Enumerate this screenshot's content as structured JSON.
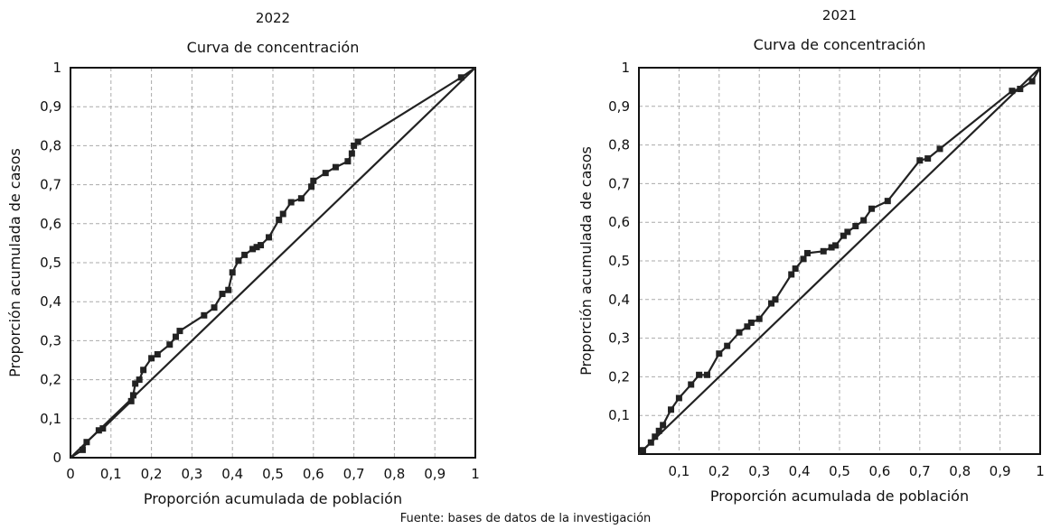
{
  "source": "Fuente: bases de datos de la investigación",
  "chart_data": [
    {
      "type": "line",
      "year": "2022",
      "title": "Curva de concentración",
      "xlabel": "Proporción acumulada de población",
      "ylabel": "Proporción acumulada de casos",
      "xlim": [
        0,
        1
      ],
      "ylim": [
        0,
        1
      ],
      "x_ticks": [
        "0",
        "0,1",
        "0,2",
        "0,3",
        "0,4",
        "0,5",
        "0,6",
        "0,7",
        "0,8",
        "0,9",
        "1"
      ],
      "y_ticks": [
        "0",
        "0,1",
        "0,2",
        "0,3",
        "0,4",
        "0,5",
        "0,6",
        "0,7",
        "0,8",
        "0,9",
        "1"
      ],
      "grid": true,
      "colors": {
        "curve": "#222222",
        "grid": "#aaaaaa"
      },
      "series": [
        {
          "role": "concentration-curve",
          "markers": true,
          "x": [
            0,
            0.03,
            0.04,
            0.07,
            0.08,
            0.15,
            0.155,
            0.16,
            0.17,
            0.18,
            0.2,
            0.215,
            0.245,
            0.26,
            0.27,
            0.33,
            0.355,
            0.375,
            0.39,
            0.4,
            0.415,
            0.43,
            0.45,
            0.46,
            0.47,
            0.49,
            0.515,
            0.525,
            0.545,
            0.57,
            0.595,
            0.6,
            0.63,
            0.655,
            0.685,
            0.695,
            0.7,
            0.71,
            0.965,
            1
          ],
          "y": [
            0,
            0.02,
            0.04,
            0.07,
            0.075,
            0.145,
            0.16,
            0.19,
            0.2,
            0.225,
            0.255,
            0.265,
            0.29,
            0.31,
            0.325,
            0.365,
            0.385,
            0.42,
            0.43,
            0.475,
            0.505,
            0.52,
            0.535,
            0.54,
            0.545,
            0.565,
            0.61,
            0.625,
            0.655,
            0.665,
            0.695,
            0.71,
            0.73,
            0.745,
            0.76,
            0.78,
            0.8,
            0.81,
            0.975,
            1
          ]
        },
        {
          "role": "equality-line",
          "markers": false,
          "x": [
            0,
            1
          ],
          "y": [
            0,
            1
          ]
        }
      ]
    },
    {
      "type": "line",
      "year": "2021",
      "title": "Curva de concentración",
      "xlabel": "Proporción acumulada de población",
      "ylabel": "Proporción acumulada de casos",
      "xlim": [
        0,
        1
      ],
      "ylim": [
        0,
        1
      ],
      "x_ticks": [
        "",
        "0,1",
        "0,2",
        "0,3",
        "0,4",
        "0,5",
        "0,6",
        "0,7",
        "0,8",
        "0,9",
        "1"
      ],
      "y_ticks": [
        "",
        "0,1",
        "0,2",
        "0,3",
        "0,4",
        "0,5",
        "0,6",
        "0,7",
        "0,8",
        "0,9",
        "1"
      ],
      "grid": true,
      "colors": {
        "curve": "#222222",
        "grid": "#aaaaaa"
      },
      "series": [
        {
          "role": "concentration-curve",
          "markers": true,
          "x": [
            0,
            0.01,
            0.03,
            0.04,
            0.05,
            0.06,
            0.08,
            0.1,
            0.13,
            0.15,
            0.17,
            0.2,
            0.22,
            0.25,
            0.27,
            0.28,
            0.3,
            0.33,
            0.34,
            0.38,
            0.39,
            0.41,
            0.42,
            0.46,
            0.48,
            0.49,
            0.51,
            0.52,
            0.54,
            0.56,
            0.58,
            0.62,
            0.7,
            0.72,
            0.75,
            0.93,
            0.95,
            0.98,
            1
          ],
          "y": [
            0,
            0.01,
            0.03,
            0.045,
            0.06,
            0.075,
            0.115,
            0.145,
            0.18,
            0.205,
            0.205,
            0.26,
            0.28,
            0.315,
            0.33,
            0.34,
            0.35,
            0.39,
            0.4,
            0.465,
            0.48,
            0.505,
            0.52,
            0.525,
            0.535,
            0.54,
            0.565,
            0.575,
            0.59,
            0.605,
            0.635,
            0.655,
            0.76,
            0.765,
            0.79,
            0.94,
            0.945,
            0.965,
            1
          ]
        },
        {
          "role": "equality-line",
          "markers": false,
          "x": [
            0,
            1
          ],
          "y": [
            0,
            1
          ]
        }
      ]
    }
  ]
}
